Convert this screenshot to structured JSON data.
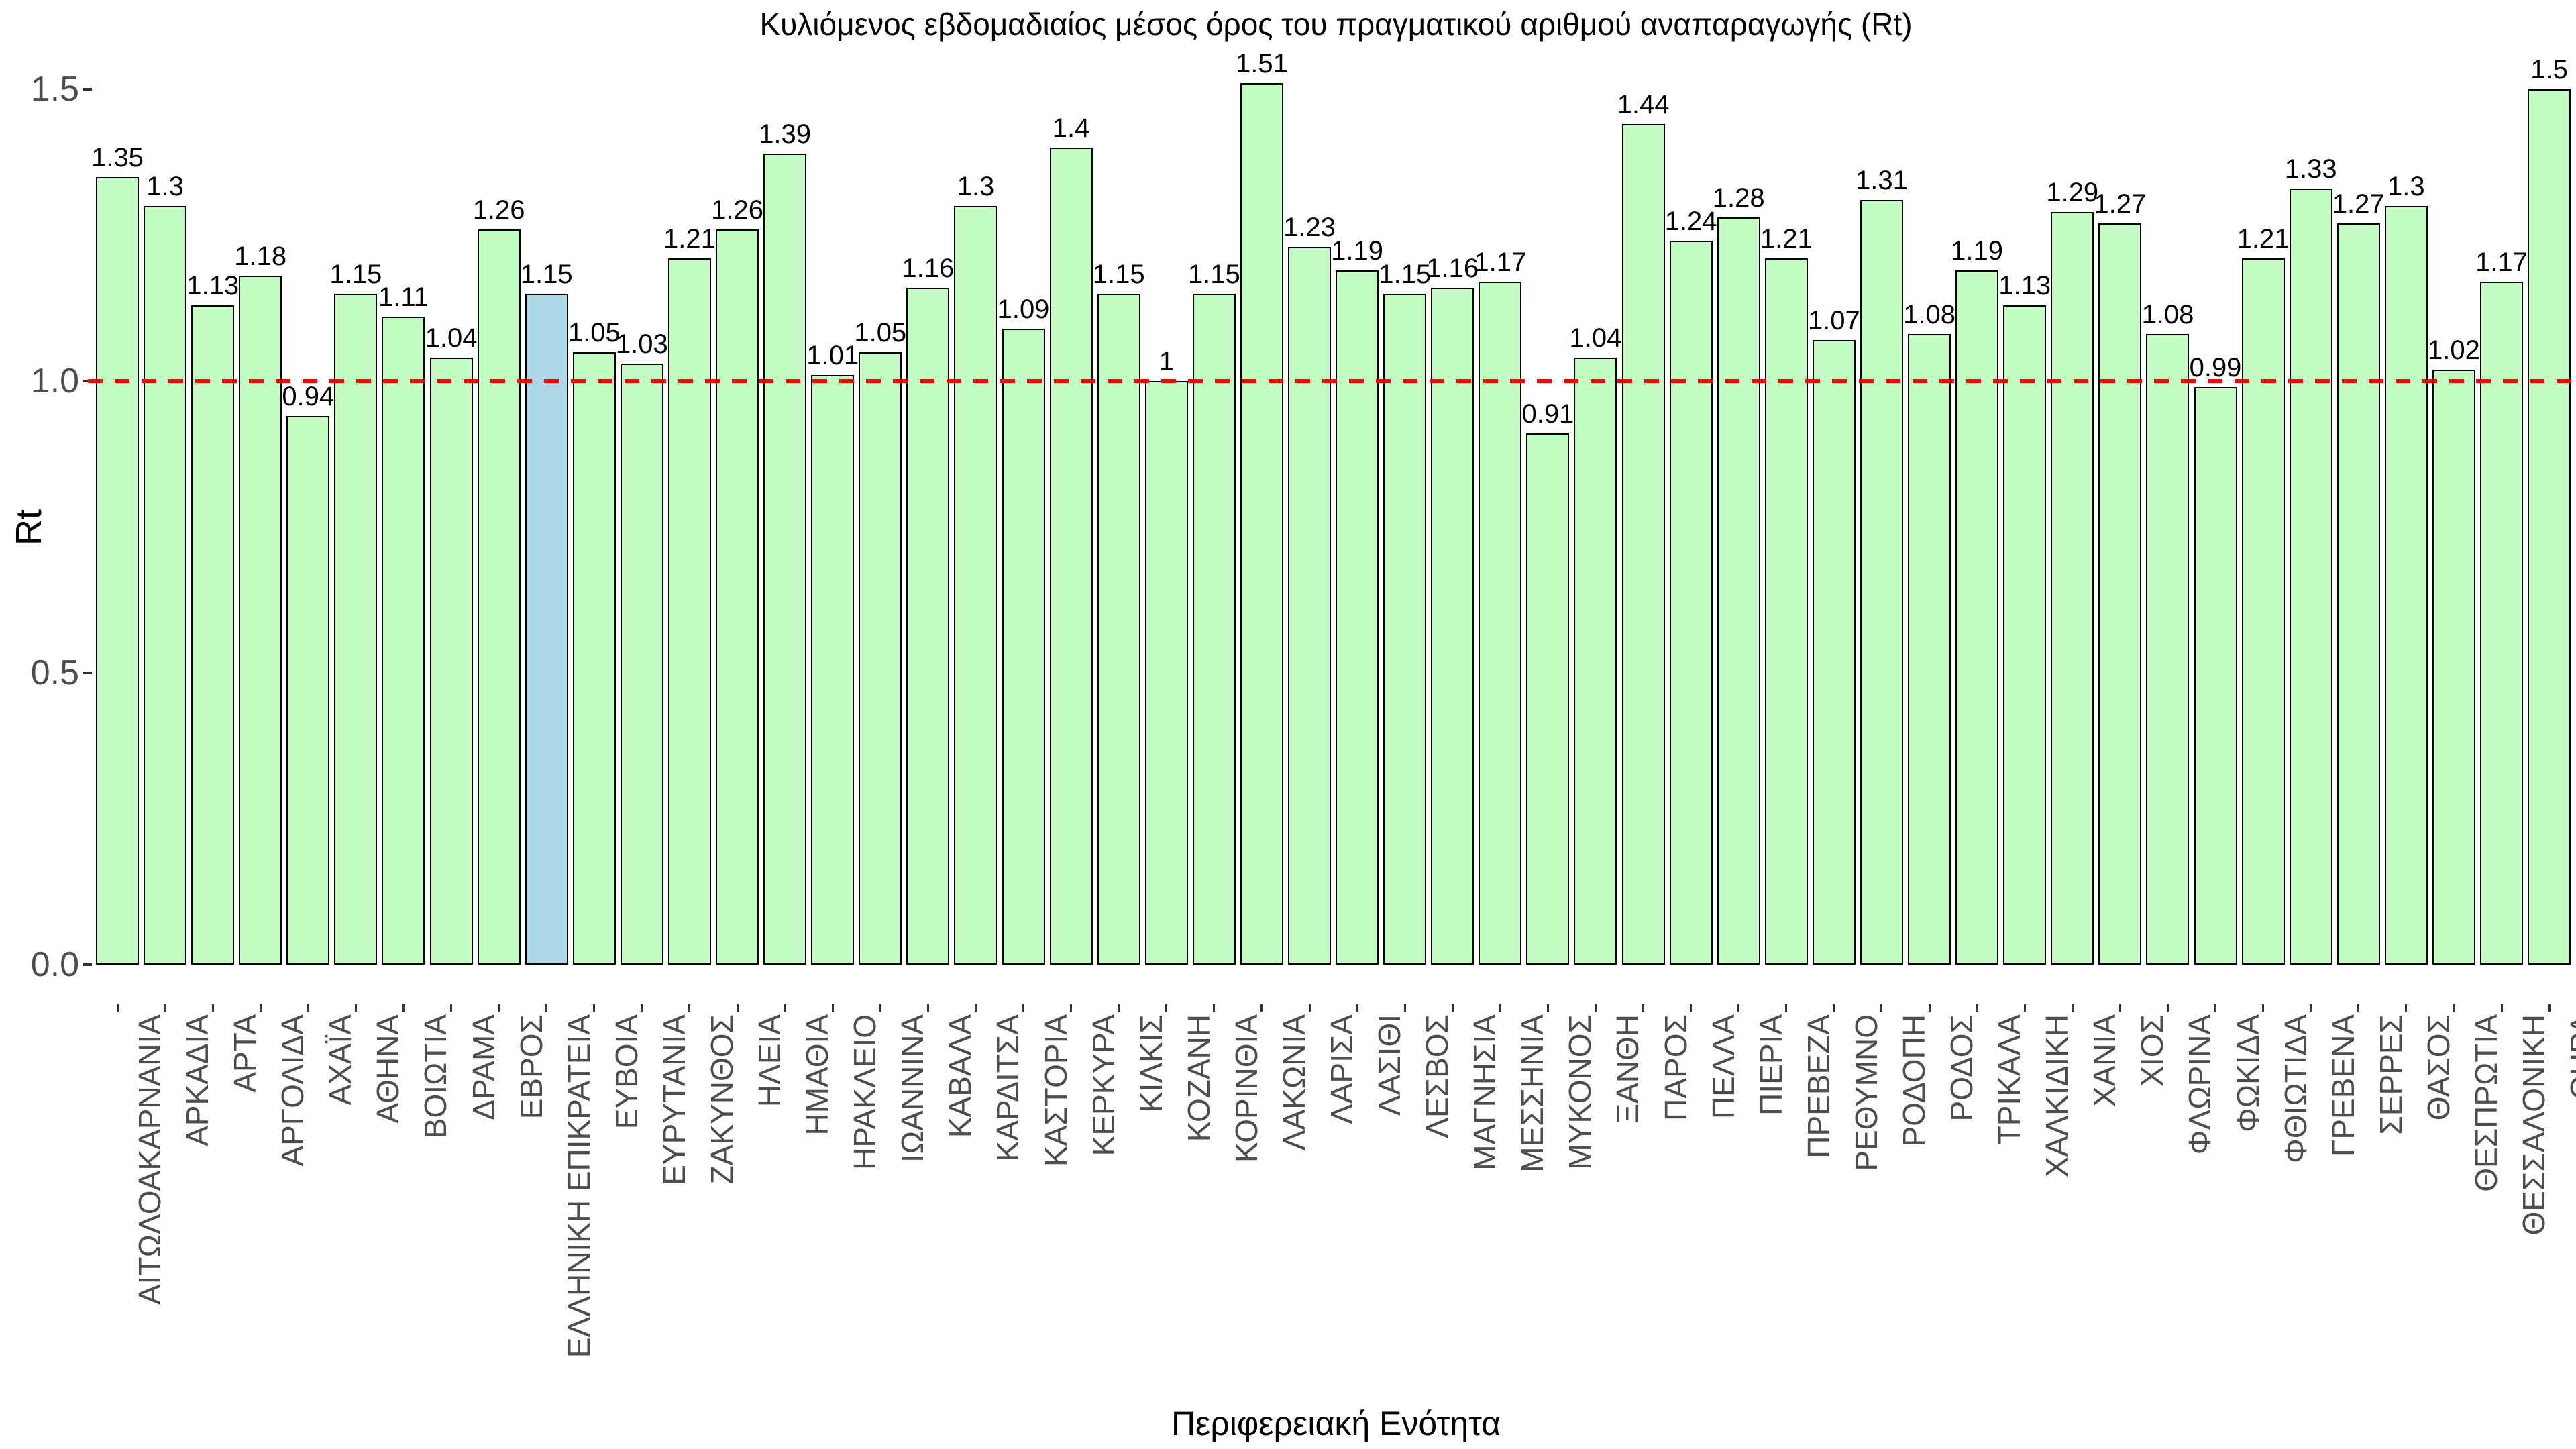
{
  "title": "Κυλιόμενος εβδομαδιαίος μέσος όρος του πραγματικού αριθμού αναπαραγωγής (Rt)",
  "y_axis": {
    "title": "Rt",
    "tick_labels": [
      "0.0",
      "0.5",
      "1.0",
      "1.5"
    ]
  },
  "x_axis": {
    "title": "Περιφερειακή Ενότητα"
  },
  "reference_line": {
    "value": 1.0,
    "color": "#ff0000",
    "style": "dashed"
  },
  "colors": {
    "bar_fill": "#c3fcc3",
    "highlight_fill": "#add8e6",
    "bar_border": "#000000",
    "axis_text": "#4d4d4d",
    "tick_mark": "#333333",
    "value_text": "#000000"
  },
  "chart_data": {
    "type": "bar",
    "title": "Κυλιόμενος εβδομαδιαίος μέσος όρος του πραγματικού αριθμού αναπαραγωγής (Rt)",
    "xlabel": "Περιφερειακή Ενότητα",
    "ylabel": "Rt",
    "ylim": [
      0,
      1.55
    ],
    "yticks": [
      0,
      0.5,
      1,
      1.5
    ],
    "grid": false,
    "legend": false,
    "reference_line_y": 1.0,
    "highlighted_category": "ΕΛΛΗΝΙΚΗ ΕΠΙΚΡΑΤΕΙΑ",
    "highlight_index": 9,
    "categories": [
      "ΑΙΤΩΛΟΑΚΑΡΝΑΝΙΑ",
      "ΑΡΚΑΔΙΑ",
      "ΑΡΤΑ",
      "ΑΡΓΟΛΙΔΑ",
      "ΑΧΑΪΑ",
      "ΑΘΗΝΑ",
      "ΒΟΙΩΤΙΑ",
      "ΔΡΑΜΑ",
      "ΕΒΡΟΣ",
      "ΕΛΛΗΝΙΚΗ ΕΠΙΚΡΑΤΕΙΑ",
      "ΕΥΒΟΙΑ",
      "ΕΥΡΥΤΑΝΙΑ",
      "ΖΑΚΥΝΘΟΣ",
      "ΗΛΕΙΑ",
      "ΗΜΑΘΙΑ",
      "ΗΡΑΚΛΕΙΟ",
      "ΙΩΑΝΝΙΝΑ",
      "ΚΑΒΑΛΑ",
      "ΚΑΡΔΙΤΣΑ",
      "ΚΑΣΤΟΡΙΑ",
      "ΚΕΡΚΥΡΑ",
      "ΚΙΛΚΙΣ",
      "ΚΟΖΑΝΗ",
      "ΚΟΡΙΝΘΙΑ",
      "ΛΑΚΩΝΙΑ",
      "ΛΑΡΙΣΑ",
      "ΛΑΣΙΘΙ",
      "ΛΕΣΒΟΣ",
      "ΜΑΓΝΗΣΙΑ",
      "ΜΕΣΣΗΝΙΑ",
      "ΜΥΚΟΝΟΣ",
      "ΞΑΝΘΗ",
      "ΠΑΡΟΣ",
      "ΠΕΛΛΑ",
      "ΠΙΕΡΙΑ",
      "ΠΡΕΒΕΖΑ",
      "ΡΕΘΥΜΝΟ",
      "ΡΟΔΟΠΗ",
      "ΡΟΔΟΣ",
      "ΤΡΙΚΑΛΑ",
      "ΧΑΛΚΙΔΙΚΗ",
      "ΧΑΝΙΑ",
      "ΧΙΟΣ",
      "ΦΛΩΡΙΝΑ",
      "ΦΩΚΙΔΑ",
      "ΦΘΙΩΤΙΔΑ",
      "ΓΡΕΒΕΝΑ",
      "ΣΕΡΡΕΣ",
      "ΘΑΣΟΣ",
      "ΘΕΣΠΡΩΤΙΑ",
      "ΘΕΣΣΑΛΟΝΙΚΗ",
      "ΘΗΡΑ"
    ],
    "values": [
      1.35,
      1.3,
      1.13,
      1.18,
      0.94,
      1.15,
      1.11,
      1.04,
      1.26,
      1.15,
      1.05,
      1.03,
      1.21,
      1.26,
      1.39,
      1.01,
      1.05,
      1.16,
      1.3,
      1.09,
      1.4,
      1.15,
      1,
      1.15,
      1.51,
      1.23,
      1.19,
      1.15,
      1.16,
      1.17,
      0.91,
      1.04,
      1.44,
      1.24,
      1.28,
      1.21,
      1.07,
      1.31,
      1.08,
      1.19,
      1.13,
      1.29,
      1.27,
      1.08,
      0.99,
      1.21,
      1.33,
      1.27,
      1.3,
      1.02,
      1.17,
      1.5
    ]
  }
}
